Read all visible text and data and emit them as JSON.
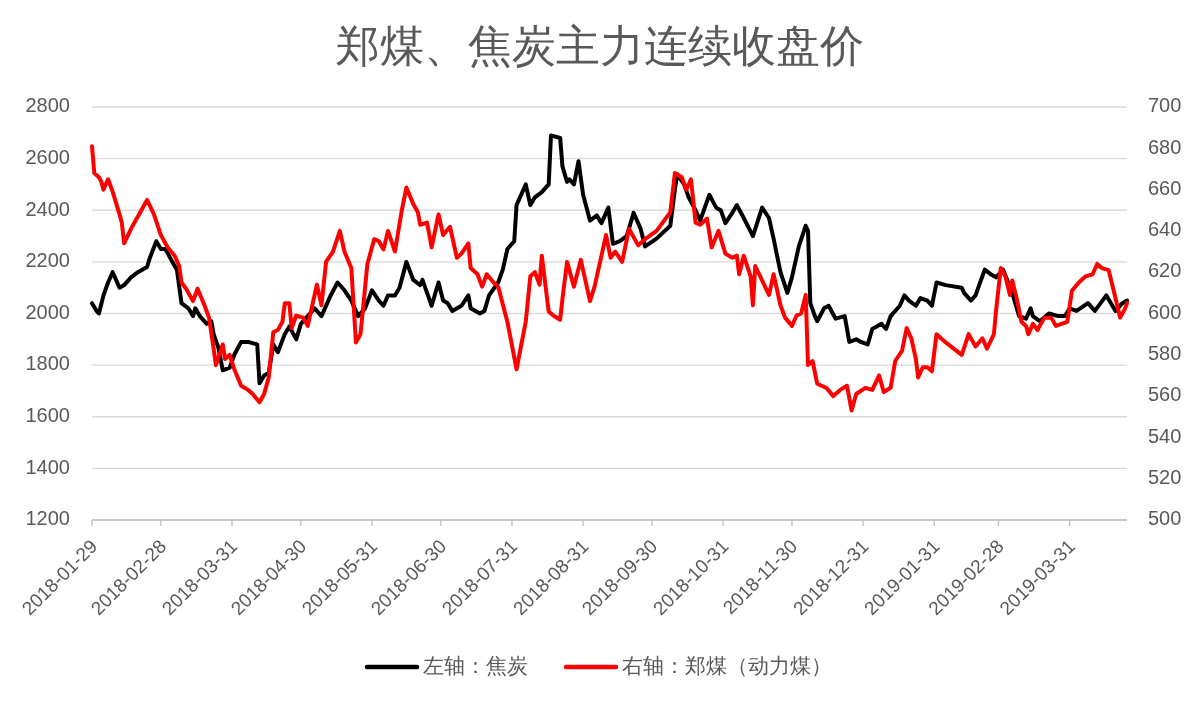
{
  "chart_data": {
    "type": "line",
    "title": "郑煤、焦炭主力连续收盘价",
    "xlim": [
      "2018-01-29",
      "2019-04-25"
    ],
    "xticks": [
      "2018-01-29",
      "2018-02-28",
      "2018-03-31",
      "2018-04-30",
      "2018-05-31",
      "2018-06-30",
      "2018-07-31",
      "2018-08-31",
      "2018-09-30",
      "2018-10-31",
      "2018-11-30",
      "2018-12-31",
      "2019-01-31",
      "2019-02-28",
      "2019-03-31"
    ],
    "ylim": [
      1200,
      2800
    ],
    "yticks": [
      1200,
      1400,
      1600,
      1800,
      2000,
      2200,
      2400,
      2600,
      2800
    ],
    "y2lim": [
      500,
      700
    ],
    "y2ticks": [
      500,
      520,
      540,
      560,
      580,
      600,
      620,
      640,
      660,
      680,
      700
    ],
    "grid": "y",
    "legend": "bottom",
    "series": [
      {
        "name": "左轴：焦炭",
        "color": "#000000",
        "x": [
          "2018-01-29",
          "2018-01-31",
          "2018-02-01",
          "2018-02-03",
          "2018-02-05",
          "2018-02-07",
          "2018-02-08",
          "2018-02-10",
          "2018-02-12",
          "2018-02-15",
          "2018-02-18",
          "2018-02-22",
          "2018-02-23",
          "2018-02-26",
          "2018-02-28",
          "2018-03-02",
          "2018-03-05",
          "2018-03-07",
          "2018-03-09",
          "2018-03-12",
          "2018-03-14",
          "2018-03-15",
          "2018-03-17",
          "2018-03-20",
          "2018-03-22",
          "2018-03-23",
          "2018-03-25",
          "2018-03-27",
          "2018-03-30",
          "2018-04-01",
          "2018-04-04",
          "2018-04-07",
          "2018-04-11",
          "2018-04-12",
          "2018-04-14",
          "2018-04-16",
          "2018-04-18",
          "2018-04-20",
          "2018-04-23",
          "2018-04-25",
          "2018-04-28",
          "2018-04-30",
          "2018-05-03",
          "2018-05-06",
          "2018-05-09",
          "2018-05-13",
          "2018-05-16",
          "2018-05-19",
          "2018-05-22",
          "2018-05-25",
          "2018-05-28",
          "2018-05-31",
          "2018-06-03",
          "2018-06-05",
          "2018-06-07",
          "2018-06-10",
          "2018-06-12",
          "2018-06-15",
          "2018-06-18",
          "2018-06-21",
          "2018-06-22",
          "2018-06-24",
          "2018-06-26",
          "2018-06-29",
          "2018-07-01",
          "2018-07-03",
          "2018-07-05",
          "2018-07-09",
          "2018-07-12",
          "2018-07-13",
          "2018-07-17",
          "2018-07-19",
          "2018-07-21",
          "2018-07-25",
          "2018-07-27",
          "2018-07-29",
          "2018-08-01",
          "2018-08-02",
          "2018-08-06",
          "2018-08-08",
          "2018-08-10",
          "2018-08-13",
          "2018-08-16",
          "2018-08-17",
          "2018-08-21",
          "2018-08-22",
          "2018-08-24",
          "2018-08-25",
          "2018-08-27",
          "2018-08-29",
          "2018-08-31",
          "2018-09-03",
          "2018-09-06",
          "2018-09-08",
          "2018-09-11",
          "2018-09-13",
          "2018-09-16",
          "2018-09-19",
          "2018-09-22",
          "2018-09-25",
          "2018-09-27",
          "2018-10-02",
          "2018-10-08",
          "2018-10-10",
          "2018-10-11",
          "2018-10-14",
          "2018-10-16",
          "2018-10-19",
          "2018-10-21",
          "2018-10-25",
          "2018-10-28",
          "2018-10-30",
          "2018-11-01",
          "2018-11-04",
          "2018-11-06",
          "2018-11-09",
          "2018-11-13",
          "2018-11-17",
          "2018-11-20",
          "2018-11-22",
          "2018-11-25",
          "2018-11-28",
          "2018-11-30",
          "2018-12-03",
          "2018-12-06",
          "2018-12-07",
          "2018-12-08",
          "2018-12-10",
          "2018-12-11",
          "2018-12-14",
          "2018-12-16",
          "2018-12-19",
          "2018-12-23",
          "2018-12-25",
          "2018-12-28",
          "2018-12-30",
          "2019-01-02",
          "2019-01-04",
          "2019-01-08",
          "2019-01-10",
          "2019-01-12",
          "2019-01-16",
          "2019-01-18",
          "2019-01-20",
          "2019-01-23",
          "2019-01-25",
          "2019-01-28",
          "2019-01-30",
          "2019-02-01",
          "2019-02-05",
          "2019-02-12",
          "2019-02-13",
          "2019-02-16",
          "2019-02-18",
          "2019-02-22",
          "2019-02-25",
          "2019-02-27",
          "2019-03-02",
          "2019-03-06",
          "2019-03-09",
          "2019-03-12",
          "2019-03-14",
          "2019-03-15",
          "2019-03-18",
          "2019-03-22",
          "2019-03-26",
          "2019-03-29",
          "2019-03-31",
          "2019-04-03",
          "2019-04-08",
          "2019-04-11",
          "2019-04-16",
          "2019-04-20",
          "2019-04-23",
          "2019-04-25"
        ],
        "values": [
          2040,
          2010,
          2000,
          2070,
          2120,
          2160,
          2140,
          2100,
          2110,
          2140,
          2160,
          2180,
          2210,
          2280,
          2250,
          2250,
          2200,
          2170,
          2040,
          2020,
          1990,
          2020,
          1990,
          1960,
          1970,
          1920,
          1870,
          1780,
          1790,
          1840,
          1890,
          1890,
          1880,
          1730,
          1760,
          1770,
          1880,
          1850,
          1920,
          1950,
          1900,
          1960,
          1990,
          2020,
          1990,
          2070,
          2120,
          2090,
          2050,
          1990,
          2020,
          2090,
          2050,
          2030,
          2070,
          2070,
          2100,
          2200,
          2130,
          2110,
          2130,
          2080,
          2030,
          2120,
          2050,
          2040,
          2010,
          2030,
          2070,
          2020,
          2000,
          2010,
          2070,
          2120,
          2170,
          2250,
          2280,
          2420,
          2500,
          2420,
          2450,
          2470,
          2500,
          2690,
          2680,
          2570,
          2510,
          2520,
          2500,
          2590,
          2460,
          2360,
          2380,
          2350,
          2410,
          2270,
          2280,
          2300,
          2390,
          2330,
          2260,
          2290,
          2340,
          2480,
          2540,
          2500,
          2450,
          2400,
          2360,
          2460,
          2410,
          2400,
          2350,
          2390,
          2420,
          2370,
          2300,
          2410,
          2370,
          2290,
          2160,
          2080,
          2140,
          2260,
          2340,
          2320,
          2040,
          1990,
          1970,
          2020,
          2030,
          1980,
          1990,
          1890,
          1900,
          1890,
          1880,
          1940,
          1960,
          1940,
          1990,
          2030,
          2070,
          2050,
          2030,
          2060,
          2050,
          2030,
          2120,
          2110,
          2100,
          2080,
          2050,
          2070,
          2170,
          2150,
          2140,
          2170,
          2080,
          1990,
          1980,
          2020,
          1990,
          1970,
          2000,
          1990,
          1990,
          2020,
          2010,
          2040,
          2010,
          2070,
          2010,
          2040,
          2050
        ]
      },
      {
        "name": "右轴：郑煤（动力煤）",
        "color": "#ff0000",
        "axis": "y2",
        "x": [
          "2018-01-29",
          "2018-01-30",
          "2018-02-01",
          "2018-02-02",
          "2018-02-03",
          "2018-02-05",
          "2018-02-07",
          "2018-02-10",
          "2018-02-11",
          "2018-02-12",
          "2018-02-15",
          "2018-02-18",
          "2018-02-22",
          "2018-02-25",
          "2018-02-28",
          "2018-03-03",
          "2018-03-06",
          "2018-03-08",
          "2018-03-09",
          "2018-03-11",
          "2018-03-14",
          "2018-03-16",
          "2018-03-19",
          "2018-03-21",
          "2018-03-23",
          "2018-03-24",
          "2018-03-27",
          "2018-03-28",
          "2018-03-30",
          "2018-04-01",
          "2018-04-04",
          "2018-04-07",
          "2018-04-09",
          "2018-04-12",
          "2018-04-14",
          "2018-04-16",
          "2018-04-18",
          "2018-04-20",
          "2018-04-22",
          "2018-04-23",
          "2018-04-25",
          "2018-04-26",
          "2018-04-28",
          "2018-05-01",
          "2018-05-03",
          "2018-05-06",
          "2018-05-07",
          "2018-05-09",
          "2018-05-11",
          "2018-05-14",
          "2018-05-17",
          "2018-05-19",
          "2018-05-22",
          "2018-05-24",
          "2018-05-26",
          "2018-05-29",
          "2018-06-01",
          "2018-06-03",
          "2018-06-05",
          "2018-06-07",
          "2018-06-10",
          "2018-06-13",
          "2018-06-15",
          "2018-06-18",
          "2018-06-20",
          "2018-06-21",
          "2018-06-24",
          "2018-06-26",
          "2018-06-29",
          "2018-07-01",
          "2018-07-04",
          "2018-07-07",
          "2018-07-09",
          "2018-07-12",
          "2018-07-13",
          "2018-07-16",
          "2018-07-18",
          "2018-07-20",
          "2018-07-23",
          "2018-07-25",
          "2018-07-29",
          "2018-08-02",
          "2018-08-06",
          "2018-08-08",
          "2018-08-10",
          "2018-08-12",
          "2018-08-13",
          "2018-08-16",
          "2018-08-18",
          "2018-08-21",
          "2018-08-22",
          "2018-08-24",
          "2018-08-27",
          "2018-08-30",
          "2018-09-03",
          "2018-09-05",
          "2018-09-07",
          "2018-09-10",
          "2018-09-12",
          "2018-09-14",
          "2018-09-17",
          "2018-09-20",
          "2018-09-24",
          "2018-09-27",
          "2018-10-02",
          "2018-10-08",
          "2018-10-10",
          "2018-10-13",
          "2018-10-15",
          "2018-10-17",
          "2018-10-19",
          "2018-10-21",
          "2018-10-24",
          "2018-10-26",
          "2018-10-29",
          "2018-11-01",
          "2018-11-04",
          "2018-11-06",
          "2018-11-07",
          "2018-11-09",
          "2018-11-12",
          "2018-11-13",
          "2018-11-14",
          "2018-11-17",
          "2018-11-20",
          "2018-11-22",
          "2018-11-25",
          "2018-11-27",
          "2018-11-30",
          "2018-12-02",
          "2018-12-04",
          "2018-12-06",
          "2018-12-07",
          "2018-12-09",
          "2018-12-11",
          "2018-12-15",
          "2018-12-18",
          "2018-12-21",
          "2018-12-24",
          "2018-12-26",
          "2018-12-28",
          "2019-01-01",
          "2019-01-04",
          "2019-01-07",
          "2019-01-09",
          "2019-01-12",
          "2019-01-14",
          "2019-01-17",
          "2019-01-19",
          "2019-01-21",
          "2019-01-23",
          "2019-01-24",
          "2019-01-26",
          "2019-01-28",
          "2019-01-30",
          "2019-02-01",
          "2019-02-05",
          "2019-02-12",
          "2019-02-15",
          "2019-02-18",
          "2019-02-21",
          "2019-02-23",
          "2019-02-26",
          "2019-02-27",
          "2019-03-01",
          "2019-03-03",
          "2019-03-05",
          "2019-03-06",
          "2019-03-08",
          "2019-03-10",
          "2019-03-12",
          "2019-03-13",
          "2019-03-15",
          "2019-03-17",
          "2019-03-20",
          "2019-03-23",
          "2019-03-25",
          "2019-03-30",
          "2019-04-01",
          "2019-04-04",
          "2019-04-07",
          "2019-04-10",
          "2019-04-12",
          "2019-04-14",
          "2019-04-17",
          "2019-04-19",
          "2019-04-22",
          "2019-04-24",
          "2019-04-25"
        ],
        "values": [
          681,
          668,
          666,
          664,
          660,
          665,
          659,
          648,
          644,
          634,
          641,
          647,
          655,
          648,
          638,
          632,
          628,
          623,
          615,
          612,
          606,
          612,
          604,
          598,
          583,
          575,
          585,
          578,
          580,
          573,
          565,
          563,
          561,
          557,
          561,
          569,
          591,
          592,
          596,
          605,
          605,
          593,
          599,
          598,
          594,
          609,
          614,
          604,
          625,
          630,
          640,
          630,
          622,
          586,
          590,
          624,
          636,
          635,
          631,
          640,
          630,
          650,
          661,
          653,
          649,
          643,
          644,
          632,
          648,
          638,
          642,
          627,
          629,
          634,
          622,
          619,
          613,
          619,
          615,
          613,
          596,
          573,
          596,
          618,
          620,
          614,
          628,
          601,
          599,
          597,
          607,
          625,
          613,
          626,
          606,
          613,
          623,
          638,
          627,
          630,
          625,
          641,
          633,
          636,
          640,
          649,
          668,
          666,
          660,
          665,
          644,
          643,
          646,
          632,
          640,
          629,
          627,
          628,
          619,
          628,
          618,
          604,
          623,
          616,
          609,
          619,
          604,
          598,
          594,
          599,
          600,
          609,
          575,
          577,
          566,
          564,
          560,
          563,
          565,
          553,
          561,
          564,
          563,
          570,
          562,
          564,
          577,
          582,
          593,
          588,
          578,
          569,
          574,
          574,
          572,
          590,
          586,
          580,
          590,
          584,
          588,
          583,
          590,
          602,
          622,
          618,
          609,
          616,
          607,
          596,
          594,
          590,
          595,
          592,
          598,
          598,
          594,
          596,
          611,
          615,
          618,
          619,
          624,
          622,
          621,
          612,
          598,
          602,
          605
        ]
      }
    ]
  }
}
